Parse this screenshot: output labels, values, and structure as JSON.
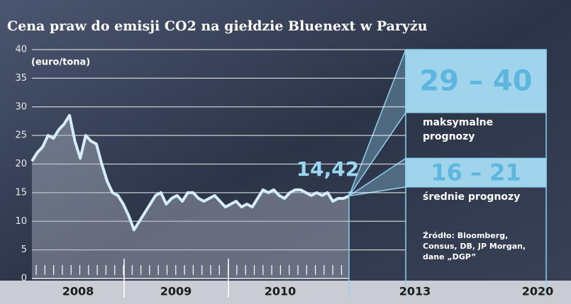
{
  "chart_data": {
    "type": "line",
    "title": "Cena praw do emisji CO2 na giełdzie Bluenext w Paryżu",
    "y_label": "(euro/tona)",
    "x_labels": [
      "2008",
      "2009",
      "2010",
      "2013",
      "2020"
    ],
    "values": [
      20.5,
      22,
      23,
      25,
      24.5,
      26,
      27,
      28.5,
      24,
      21,
      25,
      24,
      23.5,
      20,
      17,
      15,
      14.5,
      13,
      11,
      8.5,
      10,
      11.5,
      13,
      14.5,
      15,
      13,
      14,
      14.5,
      13.5,
      15,
      15,
      14,
      13.5,
      14,
      14.5,
      13.5,
      12.5,
      13,
      13.5,
      12.5,
      13,
      12.5,
      14,
      15.5,
      15,
      15.5,
      14.5,
      14,
      15,
      15.5,
      15.5,
      15,
      14.5,
      15,
      14.5,
      15,
      13.5,
      14,
      14,
      14.42
    ],
    "last_value_label": "14,42",
    "color": "#d6ecf8",
    "ylim": [
      0,
      40
    ],
    "yticks": [
      0,
      5,
      10,
      15,
      20,
      25,
      30,
      35,
      40
    ],
    "grid": true,
    "forecasts": [
      {
        "low": 29,
        "high": 40,
        "label": "29 – 40",
        "note": "maksymalne prognozy"
      },
      {
        "low": 16,
        "high": 21,
        "label": "16 – 21",
        "note": "średnie prognozy"
      }
    ],
    "source": "Źródło: Bloomberg, Consus, DB, JP Morgan, dane „DGP”"
  }
}
